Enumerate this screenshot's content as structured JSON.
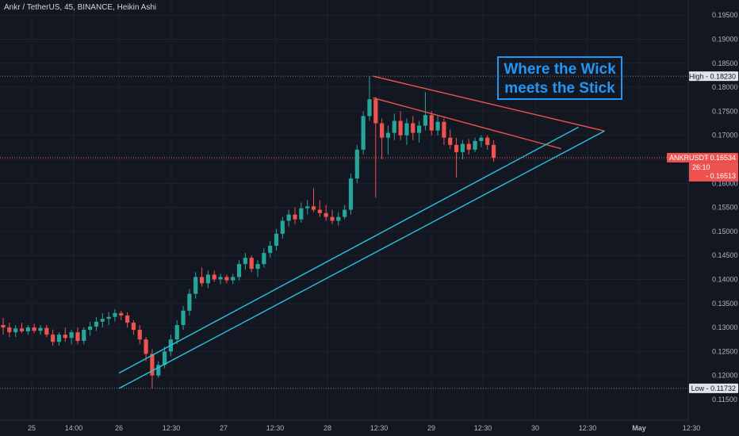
{
  "header": {
    "symbol_text": "Ankr / TetherUS, 45, BINANCE, Heikin Ashi"
  },
  "annotation": {
    "line1": "Where the Wick",
    "line2": "meets the Stick",
    "color": "#2196f3"
  },
  "colors": {
    "background": "#131722",
    "up": "#26a69a",
    "down": "#ef5350",
    "resistance": "#ef5350",
    "support": "#26c6da",
    "grid": "#1e222d",
    "dotted_ref": "#787b86",
    "axis_text": "#b2b5be"
  },
  "chart_data": {
    "type": "candlestick",
    "style": "Heikin Ashi",
    "symbol": "ANKRUSDT",
    "interval": "45",
    "exchange": "BINANCE",
    "ylim": [
      0.1145,
      0.1975
    ],
    "y_ticks": [
      "0.19500",
      "0.19000",
      "0.18500",
      "0.18000",
      "0.17500",
      "0.17000",
      "0.16500",
      "0.16000",
      "0.15500",
      "0.15000",
      "0.14500",
      "0.14000",
      "0.13500",
      "0.13000",
      "0.12500",
      "0.12000",
      "0.11500"
    ],
    "x_ticks": [
      "25",
      "14:00",
      "26",
      "12:30",
      "27",
      "12:30",
      "28",
      "12:30",
      "29",
      "12:30",
      "30",
      "12:30",
      "May",
      "12:30"
    ],
    "high_label": "High",
    "high_value": "0.18230",
    "low_label": "Low",
    "low_value": "0.11732",
    "price_tag": {
      "symbol": "ANKRUSDT",
      "price": "0.16534",
      "countdown": "26:10",
      "prev_close": "0.16513"
    },
    "trendlines": [
      {
        "name": "resistance-outer",
        "points": [
          [
            "28 10:30",
            0.1823
          ],
          [
            "30 16:00",
            0.1709
          ]
        ]
      },
      {
        "name": "resistance-inner",
        "points": [
          [
            "28 10:30",
            0.1778
          ],
          [
            "30 06:00",
            0.1672
          ]
        ]
      },
      {
        "name": "support-upper",
        "points": [
          [
            "26 00:00",
            0.1205
          ],
          [
            "30 10:00",
            0.1717
          ]
        ]
      },
      {
        "name": "support-lower",
        "points": [
          [
            "26 00:00",
            0.1173
          ],
          [
            "30 16:00",
            0.1709
          ]
        ]
      }
    ],
    "candles": [
      {
        "t": 0,
        "o": 0.1305,
        "h": 0.132,
        "l": 0.1285,
        "c": 0.13
      },
      {
        "t": 1,
        "o": 0.13,
        "h": 0.131,
        "l": 0.128,
        "c": 0.129
      },
      {
        "t": 2,
        "o": 0.129,
        "h": 0.1305,
        "l": 0.128,
        "c": 0.1298
      },
      {
        "t": 3,
        "o": 0.1298,
        "h": 0.131,
        "l": 0.1288,
        "c": 0.1292
      },
      {
        "t": 4,
        "o": 0.1292,
        "h": 0.1305,
        "l": 0.1285,
        "c": 0.13
      },
      {
        "t": 5,
        "o": 0.13,
        "h": 0.1308,
        "l": 0.1288,
        "c": 0.1293
      },
      {
        "t": 6,
        "o": 0.1293,
        "h": 0.1305,
        "l": 0.1285,
        "c": 0.1299
      },
      {
        "t": 7,
        "o": 0.1299,
        "h": 0.1305,
        "l": 0.128,
        "c": 0.1285
      },
      {
        "t": 8,
        "o": 0.1285,
        "h": 0.1296,
        "l": 0.1262,
        "c": 0.127
      },
      {
        "t": 9,
        "o": 0.127,
        "h": 0.129,
        "l": 0.1262,
        "c": 0.1285
      },
      {
        "t": 10,
        "o": 0.1285,
        "h": 0.13,
        "l": 0.127,
        "c": 0.1278
      },
      {
        "t": 11,
        "o": 0.1278,
        "h": 0.1295,
        "l": 0.1265,
        "c": 0.129
      },
      {
        "t": 12,
        "o": 0.129,
        "h": 0.13,
        "l": 0.1265,
        "c": 0.1272
      },
      {
        "t": 13,
        "o": 0.1272,
        "h": 0.13,
        "l": 0.1265,
        "c": 0.1295
      },
      {
        "t": 14,
        "o": 0.1295,
        "h": 0.1312,
        "l": 0.1283,
        "c": 0.1302
      },
      {
        "t": 15,
        "o": 0.1302,
        "h": 0.1322,
        "l": 0.1293,
        "c": 0.1312
      },
      {
        "t": 16,
        "o": 0.1312,
        "h": 0.133,
        "l": 0.13,
        "c": 0.1318
      },
      {
        "t": 17,
        "o": 0.1318,
        "h": 0.1332,
        "l": 0.1305,
        "c": 0.1322
      },
      {
        "t": 18,
        "o": 0.1322,
        "h": 0.1338,
        "l": 0.1312,
        "c": 0.133
      },
      {
        "t": 19,
        "o": 0.133,
        "h": 0.1335,
        "l": 0.1315,
        "c": 0.1325
      },
      {
        "t": 20,
        "o": 0.1325,
        "h": 0.1332,
        "l": 0.13,
        "c": 0.131
      },
      {
        "t": 21,
        "o": 0.131,
        "h": 0.1315,
        "l": 0.1285,
        "c": 0.1295
      },
      {
        "t": 22,
        "o": 0.1295,
        "h": 0.1305,
        "l": 0.1265,
        "c": 0.1275
      },
      {
        "t": 23,
        "o": 0.1275,
        "h": 0.128,
        "l": 0.123,
        "c": 0.1245
      },
      {
        "t": 24,
        "o": 0.1245,
        "h": 0.1255,
        "l": 0.1173,
        "c": 0.12
      },
      {
        "t": 25,
        "o": 0.12,
        "h": 0.123,
        "l": 0.1195,
        "c": 0.1222
      },
      {
        "t": 26,
        "o": 0.1222,
        "h": 0.126,
        "l": 0.1215,
        "c": 0.125
      },
      {
        "t": 27,
        "o": 0.125,
        "h": 0.1285,
        "l": 0.124,
        "c": 0.1275
      },
      {
        "t": 28,
        "o": 0.1275,
        "h": 0.1315,
        "l": 0.1265,
        "c": 0.1305
      },
      {
        "t": 29,
        "o": 0.1305,
        "h": 0.1345,
        "l": 0.1295,
        "c": 0.1335
      },
      {
        "t": 30,
        "o": 0.1335,
        "h": 0.138,
        "l": 0.1325,
        "c": 0.137
      },
      {
        "t": 31,
        "o": 0.137,
        "h": 0.1415,
        "l": 0.136,
        "c": 0.1405
      },
      {
        "t": 32,
        "o": 0.1405,
        "h": 0.1425,
        "l": 0.1385,
        "c": 0.1392
      },
      {
        "t": 33,
        "o": 0.1392,
        "h": 0.1418,
        "l": 0.1382,
        "c": 0.141
      },
      {
        "t": 34,
        "o": 0.141,
        "h": 0.1418,
        "l": 0.1395,
        "c": 0.14
      },
      {
        "t": 35,
        "o": 0.14,
        "h": 0.1412,
        "l": 0.139,
        "c": 0.1405
      },
      {
        "t": 36,
        "o": 0.1405,
        "h": 0.141,
        "l": 0.1392,
        "c": 0.1398
      },
      {
        "t": 37,
        "o": 0.1398,
        "h": 0.1412,
        "l": 0.139,
        "c": 0.1405
      },
      {
        "t": 38,
        "o": 0.1405,
        "h": 0.144,
        "l": 0.1398,
        "c": 0.1432
      },
      {
        "t": 39,
        "o": 0.1432,
        "h": 0.1455,
        "l": 0.142,
        "c": 0.1445
      },
      {
        "t": 40,
        "o": 0.1445,
        "h": 0.145,
        "l": 0.1415,
        "c": 0.1422
      },
      {
        "t": 41,
        "o": 0.1422,
        "h": 0.144,
        "l": 0.1405,
        "c": 0.1432
      },
      {
        "t": 42,
        "o": 0.1432,
        "h": 0.1465,
        "l": 0.1425,
        "c": 0.1455
      },
      {
        "t": 43,
        "o": 0.1455,
        "h": 0.148,
        "l": 0.1445,
        "c": 0.147
      },
      {
        "t": 44,
        "o": 0.147,
        "h": 0.1505,
        "l": 0.146,
        "c": 0.1495
      },
      {
        "t": 45,
        "o": 0.1495,
        "h": 0.153,
        "l": 0.1485,
        "c": 0.1522
      },
      {
        "t": 46,
        "o": 0.1522,
        "h": 0.1545,
        "l": 0.151,
        "c": 0.1535
      },
      {
        "t": 47,
        "o": 0.1535,
        "h": 0.155,
        "l": 0.1515,
        "c": 0.1525
      },
      {
        "t": 48,
        "o": 0.1525,
        "h": 0.156,
        "l": 0.1518,
        "c": 0.1548
      },
      {
        "t": 49,
        "o": 0.1548,
        "h": 0.1565,
        "l": 0.1535,
        "c": 0.1552
      },
      {
        "t": 50,
        "o": 0.1552,
        "h": 0.159,
        "l": 0.154,
        "c": 0.1545
      },
      {
        "t": 51,
        "o": 0.1545,
        "h": 0.1565,
        "l": 0.153,
        "c": 0.1538
      },
      {
        "t": 52,
        "o": 0.1538,
        "h": 0.1555,
        "l": 0.1522,
        "c": 0.153
      },
      {
        "t": 53,
        "o": 0.153,
        "h": 0.1545,
        "l": 0.1515,
        "c": 0.1522
      },
      {
        "t": 54,
        "o": 0.1522,
        "h": 0.154,
        "l": 0.1512,
        "c": 0.153
      },
      {
        "t": 55,
        "o": 0.153,
        "h": 0.1555,
        "l": 0.1525,
        "c": 0.1545
      },
      {
        "t": 56,
        "o": 0.1545,
        "h": 0.162,
        "l": 0.1535,
        "c": 0.161
      },
      {
        "t": 57,
        "o": 0.161,
        "h": 0.168,
        "l": 0.16,
        "c": 0.167
      },
      {
        "t": 58,
        "o": 0.167,
        "h": 0.175,
        "l": 0.166,
        "c": 0.174
      },
      {
        "t": 59,
        "o": 0.174,
        "h": 0.1823,
        "l": 0.173,
        "c": 0.1775
      },
      {
        "t": 60,
        "o": 0.1775,
        "h": 0.178,
        "l": 0.157,
        "c": 0.1725
      },
      {
        "t": 61,
        "o": 0.1725,
        "h": 0.1735,
        "l": 0.165,
        "c": 0.1695
      },
      {
        "t": 62,
        "o": 0.1695,
        "h": 0.172,
        "l": 0.166,
        "c": 0.1705
      },
      {
        "t": 63,
        "o": 0.1705,
        "h": 0.1745,
        "l": 0.169,
        "c": 0.173
      },
      {
        "t": 64,
        "o": 0.173,
        "h": 0.175,
        "l": 0.169,
        "c": 0.17
      },
      {
        "t": 65,
        "o": 0.17,
        "h": 0.1735,
        "l": 0.168,
        "c": 0.1725
      },
      {
        "t": 66,
        "o": 0.1725,
        "h": 0.174,
        "l": 0.169,
        "c": 0.1705
      },
      {
        "t": 67,
        "o": 0.1705,
        "h": 0.173,
        "l": 0.1685,
        "c": 0.172
      },
      {
        "t": 68,
        "o": 0.172,
        "h": 0.179,
        "l": 0.171,
        "c": 0.1742
      },
      {
        "t": 69,
        "o": 0.1742,
        "h": 0.175,
        "l": 0.17,
        "c": 0.171
      },
      {
        "t": 70,
        "o": 0.171,
        "h": 0.174,
        "l": 0.17,
        "c": 0.1728
      },
      {
        "t": 71,
        "o": 0.1728,
        "h": 0.1735,
        "l": 0.168,
        "c": 0.1695
      },
      {
        "t": 72,
        "o": 0.1695,
        "h": 0.1712,
        "l": 0.1672,
        "c": 0.168
      },
      {
        "t": 73,
        "o": 0.168,
        "h": 0.1695,
        "l": 0.1612,
        "c": 0.1665
      },
      {
        "t": 74,
        "o": 0.1665,
        "h": 0.169,
        "l": 0.165,
        "c": 0.1682
      },
      {
        "t": 75,
        "o": 0.1682,
        "h": 0.1692,
        "l": 0.166,
        "c": 0.167
      },
      {
        "t": 76,
        "o": 0.167,
        "h": 0.1695,
        "l": 0.1665,
        "c": 0.1688
      },
      {
        "t": 77,
        "o": 0.1688,
        "h": 0.17,
        "l": 0.1675,
        "c": 0.1695
      },
      {
        "t": 78,
        "o": 0.1695,
        "h": 0.17,
        "l": 0.167,
        "c": 0.168
      },
      {
        "t": 79,
        "o": 0.168,
        "h": 0.169,
        "l": 0.1645,
        "c": 0.1653
      }
    ]
  }
}
